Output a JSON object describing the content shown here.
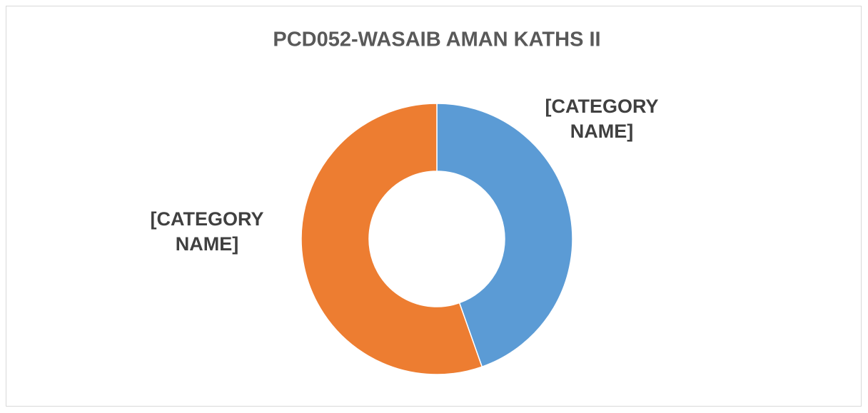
{
  "chart_data": {
    "type": "donut",
    "title": "PCD052-WASAIB AMAN KATHS II",
    "categories": [
      "[CATEGORY NAME]",
      "[CATEGORY NAME]"
    ],
    "values": [
      44.6,
      55.4
    ],
    "colors": [
      "#5b9bd5",
      "#ed7d31"
    ]
  }
}
